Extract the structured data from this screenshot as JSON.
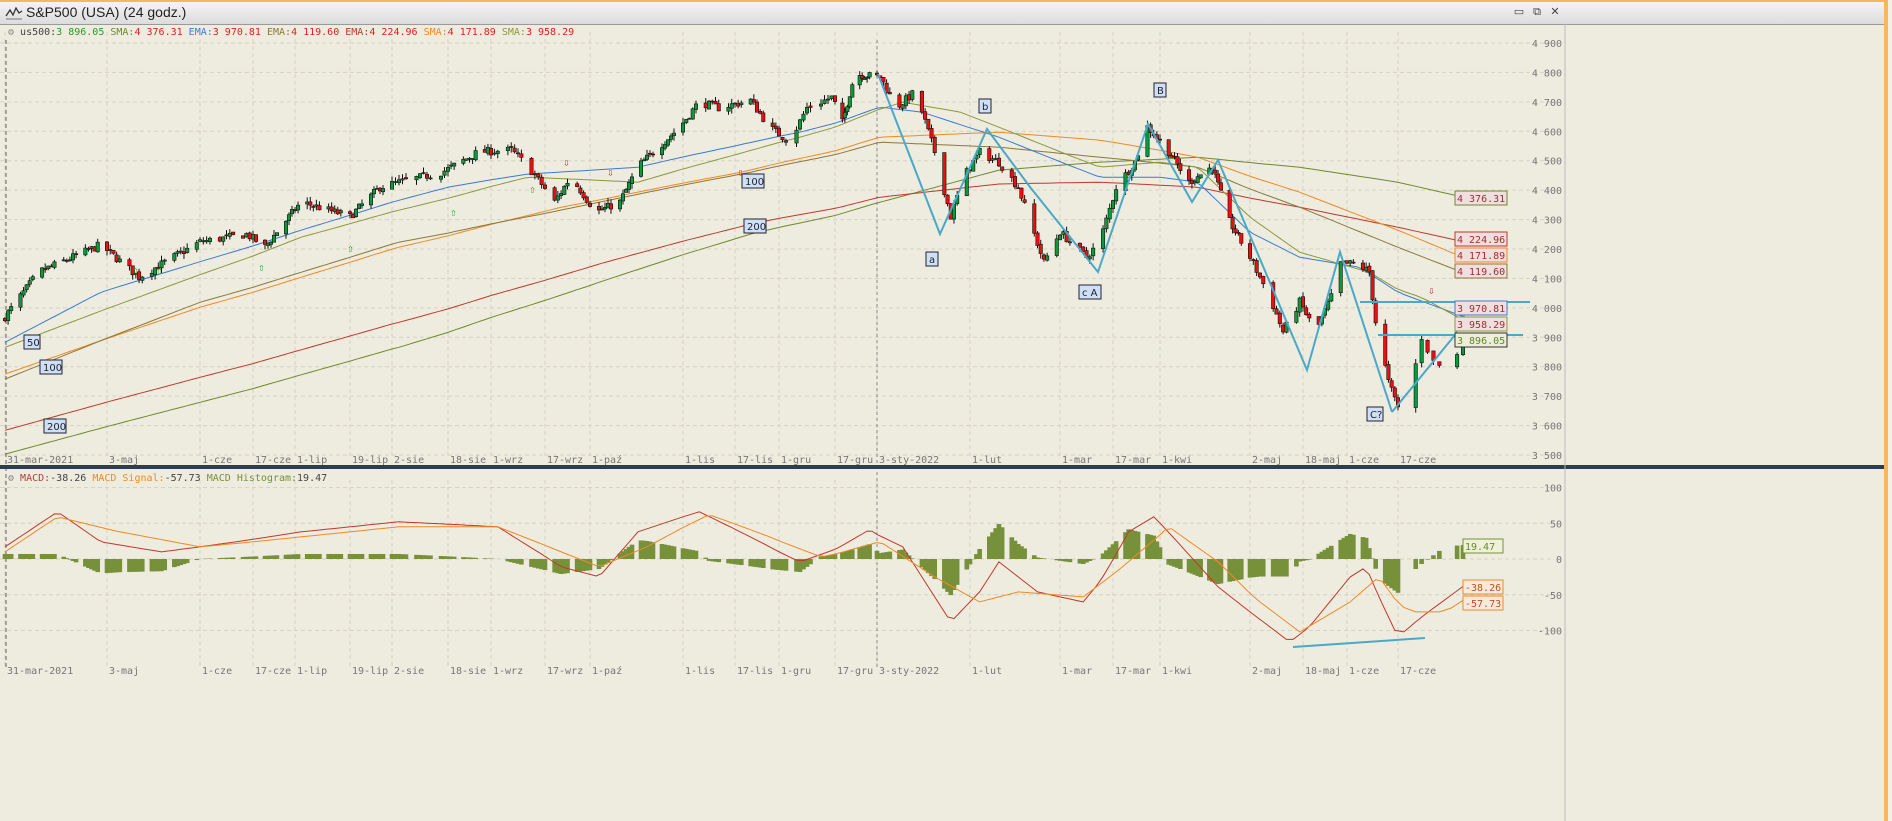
{
  "window": {
    "title": "S&P500 (USA) (24 godz.)",
    "controls": {
      "minimize": "▭",
      "restore": "⧉",
      "close": "✕"
    }
  },
  "legend": {
    "symbol_label": "us500:",
    "symbol_value": "3 896.05",
    "items": [
      {
        "label": "SMA:",
        "value": "4 376.31",
        "color": "#6f8a2a"
      },
      {
        "label": "EMA:",
        "value": "3 970.81",
        "color": "#3a7bd5"
      },
      {
        "label": "EMA:",
        "value": "4 119.60",
        "color": "#8a7a3a"
      },
      {
        "label": "EMA:",
        "value": "4 224.96",
        "color": "#c0392b"
      },
      {
        "label": "SMA:",
        "value": "4 171.89",
        "color": "#f08a24"
      },
      {
        "label": "SMA:",
        "value": "3 958.29",
        "color": "#8a9a3a"
      }
    ]
  },
  "macd_legend": {
    "macd_label": "MACD:",
    "macd_value": "-38.26",
    "signal_label": "MACD Signal:",
    "signal_value": "-57.73",
    "hist_label": "MACD Histogram:",
    "hist_value": "19.47"
  },
  "chart_data": [
    {
      "type": "candlestick",
      "symbol": "us500",
      "last_close": 3896.05,
      "ylim": [
        3500,
        4900
      ],
      "y_ticks": [
        "4 900",
        "4 800",
        "4 700",
        "4 600",
        "4 500",
        "4 400",
        "4 300",
        "4 200",
        "4 100",
        "4 000",
        "3 900",
        "3 800",
        "3 700",
        "3 600",
        "3 500"
      ],
      "y_tick_values": [
        4900,
        4800,
        4700,
        4600,
        4500,
        4400,
        4300,
        4200,
        4100,
        4000,
        3900,
        3800,
        3700,
        3600,
        3500
      ],
      "x_ticks": [
        "31-mar-2021",
        "3-maj",
        "1-cze",
        "17-cze",
        "1-lip",
        "19-lip",
        "2-sie",
        "18-sie",
        "1-wrz",
        "17-wrz",
        "1-paź",
        "1-lis",
        "17-lis",
        "1-gru",
        "17-gru",
        "3-sty-2022",
        "1-lut",
        "1-mar",
        "17-mar",
        "1-kwi",
        "2-maj",
        "18-maj",
        "1-cze",
        "17-cze"
      ],
      "grid": true,
      "close_path": [
        [
          "2021-03-31",
          3970
        ],
        [
          "2021-04-11",
          4122
        ],
        [
          "2021-05-01",
          4214
        ],
        [
          "2021-05-13",
          4105
        ],
        [
          "2021-06-01",
          4224
        ],
        [
          "2021-06-15",
          4250
        ],
        [
          "2021-06-21",
          4207
        ],
        [
          "2021-07-03",
          4360
        ],
        [
          "2021-07-19",
          4310
        ],
        [
          "2021-07-29",
          4410
        ],
        [
          "2021-08-16",
          4460
        ],
        [
          "2021-08-28",
          4530
        ],
        [
          "2021-09-07",
          4536
        ],
        [
          "2021-09-12",
          4480
        ],
        [
          "2021-09-20",
          4360
        ],
        [
          "2021-09-25",
          4445
        ],
        [
          "2021-10-03",
          4325
        ],
        [
          "2021-10-11",
          4360
        ],
        [
          "2021-10-17",
          4480
        ],
        [
          "2021-10-31",
          4615
        ],
        [
          "2021-11-06",
          4700
        ],
        [
          "2021-11-12",
          4680
        ],
        [
          "2021-11-22",
          4705
        ],
        [
          "2021-11-28",
          4615
        ],
        [
          "2021-12-04",
          4565
        ],
        [
          "2021-12-09",
          4680
        ],
        [
          "2021-12-16",
          4715
        ],
        [
          "2021-12-20",
          4630
        ],
        [
          "2021-12-25",
          4795
        ],
        [
          "2022-01-04",
          4785
        ],
        [
          "2022-01-09",
          4680
        ],
        [
          "2022-01-15",
          4735
        ],
        [
          "2022-01-21",
          4530
        ],
        [
          "2022-01-26",
          4310
        ],
        [
          "2022-01-30",
          4445
        ],
        [
          "2022-02-04",
          4530
        ],
        [
          "2022-02-10",
          4495
        ],
        [
          "2022-02-16",
          4410
        ],
        [
          "2022-02-24",
          4155
        ],
        [
          "2022-03-01",
          4258
        ],
        [
          "2022-03-09",
          4172
        ],
        [
          "2022-03-13",
          4225
        ],
        [
          "2022-03-18",
          4410
        ],
        [
          "2022-03-24",
          4495
        ],
        [
          "2022-03-28",
          4615
        ],
        [
          "2022-04-04",
          4530
        ],
        [
          "2022-04-11",
          4427
        ],
        [
          "2022-04-19",
          4480
        ],
        [
          "2022-04-25",
          4293
        ],
        [
          "2022-05-02",
          4172
        ],
        [
          "2022-05-08",
          4037
        ],
        [
          "2022-05-12",
          3918
        ],
        [
          "2022-05-17",
          4020
        ],
        [
          "2022-05-22",
          3918
        ],
        [
          "2022-05-27",
          4037
        ],
        [
          "2022-05-30",
          4150
        ],
        [
          "2022-06-04",
          4150
        ],
        [
          "2022-06-08",
          4122
        ],
        [
          "2022-06-10",
          3952
        ],
        [
          "2022-06-14",
          3748
        ],
        [
          "2022-06-17",
          3663
        ],
        [
          "2022-06-19",
          3714
        ],
        [
          "2022-06-21",
          3901
        ],
        [
          "2022-06-23",
          3816
        ],
        [
          "2022-06-26",
          3782
        ],
        [
          "2022-06-28",
          3896.05
        ]
      ],
      "series": [
        {
          "name": "SMA",
          "color": "#6f8a2a",
          "last": "4 376.31",
          "badge_label": "200",
          "points": [
            [
              "2021-03-31",
              3503
            ],
            [
              "2021-06-01",
              3679
            ],
            [
              "2021-08-04",
              3866
            ],
            [
              "2021-10-04",
              4087
            ],
            [
              "2021-11-22",
              4251
            ],
            [
              "2022-01-04",
              4359
            ],
            [
              "2022-02-10",
              4468
            ],
            [
              "2022-03-13",
              4495
            ],
            [
              "2022-04-14",
              4512
            ],
            [
              "2022-05-17",
              4478
            ],
            [
              "2022-06-17",
              4427
            ],
            [
              "2022-06-28",
              4376.31
            ]
          ]
        },
        {
          "name": "EMA",
          "color": "#c0392b",
          "last": "4 224.96",
          "points": [
            [
              "2021-03-31",
              3584
            ],
            [
              "2021-06-01",
              3764
            ],
            [
              "2021-08-04",
              3951
            ],
            [
              "2021-10-04",
              4149
            ],
            [
              "2021-11-22",
              4285
            ],
            [
              "2022-01-04",
              4376
            ],
            [
              "2022-02-10",
              4421
            ],
            [
              "2022-03-13",
              4427
            ],
            [
              "2022-04-14",
              4410
            ],
            [
              "2022-05-17",
              4342
            ],
            [
              "2022-06-17",
              4274
            ],
            [
              "2022-06-28",
              4224.96
            ]
          ]
        },
        {
          "name": "SMA",
          "color": "#f08a24",
          "last": "4 171.89",
          "badge_label": "100",
          "points": [
            [
              "2021-03-31",
              3775
            ],
            [
              "2021-06-01",
              4002
            ],
            [
              "2021-08-04",
              4206
            ],
            [
              "2021-09-22",
              4342
            ],
            [
              "2021-11-19",
              4461
            ],
            [
              "2022-01-04",
              4580
            ],
            [
              "2022-02-10",
              4597
            ],
            [
              "2022-03-13",
              4570
            ],
            [
              "2022-04-14",
              4512
            ],
            [
              "2022-05-17",
              4393
            ],
            [
              "2022-06-17",
              4264
            ],
            [
              "2022-06-28",
              4171.89
            ]
          ]
        },
        {
          "name": "EMA",
          "color": "#8a7a3a",
          "last": "4 119.60",
          "points": [
            [
              "2021-03-31",
              3758
            ],
            [
              "2021-06-01",
              4019
            ],
            [
              "2021-08-04",
              4223
            ],
            [
              "2021-10-04",
              4359
            ],
            [
              "2021-11-22",
              4461
            ],
            [
              "2022-01-04",
              4563
            ],
            [
              "2022-02-10",
              4546
            ],
            [
              "2022-03-13",
              4512
            ],
            [
              "2022-04-14",
              4478
            ],
            [
              "2022-05-17",
              4342
            ],
            [
              "2022-06-17",
              4206
            ],
            [
              "2022-06-28",
              4119.6
            ]
          ]
        },
        {
          "name": "EMA",
          "color": "#3a7bd5",
          "last": "3 970.81",
          "badge_label": "50",
          "points": [
            [
              "2021-03-31",
              3883
            ],
            [
              "2021-05-01",
              4053
            ],
            [
              "2021-07-03",
              4264
            ],
            [
              "2021-08-18",
              4410
            ],
            [
              "2021-09-12",
              4455
            ],
            [
              "2021-10-17",
              4478
            ],
            [
              "2021-12-07",
              4597
            ],
            [
              "2022-01-04",
              4682
            ],
            [
              "2022-01-17",
              4665
            ],
            [
              "2022-02-10",
              4580
            ],
            [
              "2022-03-13",
              4444
            ],
            [
              "2022-04-01",
              4444
            ],
            [
              "2022-04-14",
              4427
            ],
            [
              "2022-05-02",
              4257
            ],
            [
              "2022-05-17",
              4172
            ],
            [
              "2022-06-05",
              4138
            ],
            [
              "2022-06-17",
              4053
            ],
            [
              "2022-06-28",
              3970.81
            ]
          ]
        },
        {
          "name": "SMA",
          "color": "#8a9a3a",
          "last": "3 958.29",
          "points": [
            [
              "2021-03-31",
              3866
            ],
            [
              "2021-07-03",
              4240
            ],
            [
              "2021-09-12",
              4444
            ],
            [
              "2021-10-17",
              4427
            ],
            [
              "2021-12-07",
              4580
            ],
            [
              "2022-01-11",
              4699
            ],
            [
              "2022-01-29",
              4665
            ],
            [
              "2022-02-10",
              4614
            ],
            [
              "2022-03-13",
              4478
            ],
            [
              "2022-04-01",
              4495
            ],
            [
              "2022-04-14",
              4478
            ],
            [
              "2022-05-02",
              4308
            ],
            [
              "2022-05-17",
              4189
            ],
            [
              "2022-06-08",
              4121
            ],
            [
              "2022-06-21",
              4036
            ],
            [
              "2022-06-28",
              3958.29
            ]
          ]
        }
      ],
      "annotations": {
        "wave_labels": [
          "a",
          "b",
          "c A",
          "B",
          "C?"
        ],
        "ma_labels": [
          "50",
          "100",
          "200",
          "100",
          "200"
        ]
      }
    },
    {
      "type": "line",
      "indicator": "MACD",
      "ylim": [
        -150,
        125
      ],
      "y_ticks": [
        "100",
        "50",
        "0",
        "-50",
        "-100"
      ],
      "y_tick_values": [
        100,
        50,
        0,
        -50,
        -100
      ],
      "grid": true,
      "series": [
        {
          "name": "MACD",
          "color": "#c0392b",
          "last": "-38.26",
          "points": [
            [
              "2021-03-31",
              17
            ],
            [
              "2021-04-17",
              66
            ],
            [
              "2021-05-01",
              24
            ],
            [
              "2021-05-20",
              10
            ],
            [
              "2021-06-01",
              17
            ],
            [
              "2021-07-03",
              38
            ],
            [
              "2021-08-04",
              52
            ],
            [
              "2021-09-03",
              45
            ],
            [
              "2021-09-22",
              -11
            ],
            [
              "2021-10-04",
              -25
            ],
            [
              "2021-10-17",
              38
            ],
            [
              "2021-11-06",
              66
            ],
            [
              "2021-11-25",
              24
            ],
            [
              "2021-12-07",
              -4
            ],
            [
              "2021-12-19",
              17
            ],
            [
              "2021-12-31",
              41
            ],
            [
              "2022-01-11",
              17
            ],
            [
              "2022-01-26",
              -88
            ],
            [
              "2022-02-04",
              -46
            ],
            [
              "2022-02-10",
              -4
            ],
            [
              "2022-02-22",
              -46
            ],
            [
              "2022-03-08",
              -60
            ],
            [
              "2022-03-13",
              -32
            ],
            [
              "2022-03-22",
              38
            ],
            [
              "2022-03-30",
              59
            ],
            [
              "2022-04-07",
              24
            ],
            [
              "2022-04-21",
              -39
            ],
            [
              "2022-05-02",
              -74
            ],
            [
              "2022-05-14",
              -116
            ],
            [
              "2022-05-20",
              -95
            ],
            [
              "2022-06-02",
              -25
            ],
            [
              "2022-06-07",
              -11
            ],
            [
              "2022-06-11",
              -53
            ],
            [
              "2022-06-17",
              -109
            ],
            [
              "2022-06-21",
              -81
            ],
            [
              "2022-06-28",
              -38.26
            ]
          ]
        },
        {
          "name": "MACD Signal",
          "color": "#f08a24",
          "last": "-57.73",
          "points": [
            [
              "2021-03-31",
              10
            ],
            [
              "2021-04-17",
              59
            ],
            [
              "2021-05-07",
              38
            ],
            [
              "2021-06-01",
              17
            ],
            [
              "2021-07-03",
              31
            ],
            [
              "2021-08-04",
              45
            ],
            [
              "2021-09-03",
              45
            ],
            [
              "2021-09-22",
              10
            ],
            [
              "2021-10-04",
              -11
            ],
            [
              "2021-10-20",
              17
            ],
            [
              "2021-11-09",
              62
            ],
            [
              "2021-11-28",
              31
            ],
            [
              "2021-12-13",
              3
            ],
            [
              "2022-01-04",
              24
            ],
            [
              "2022-01-21",
              -25
            ],
            [
              "2022-02-04",
              -60
            ],
            [
              "2022-02-16",
              -46
            ],
            [
              "2022-03-08",
              -53
            ],
            [
              "2022-03-20",
              -11
            ],
            [
              "2022-04-04",
              45
            ],
            [
              "2022-04-21",
              -4
            ],
            [
              "2022-05-05",
              -60
            ],
            [
              "2022-05-17",
              -102
            ],
            [
              "2022-06-02",
              -60
            ],
            [
              "2022-06-11",
              -25
            ],
            [
              "2022-06-19",
              -74
            ],
            [
              "2022-06-25",
              -74
            ],
            [
              "2022-06-28",
              -57.73
            ]
          ]
        },
        {
          "name": "MACD Histogram",
          "color": "#77903a",
          "last": "19.47"
        }
      ]
    }
  ]
}
